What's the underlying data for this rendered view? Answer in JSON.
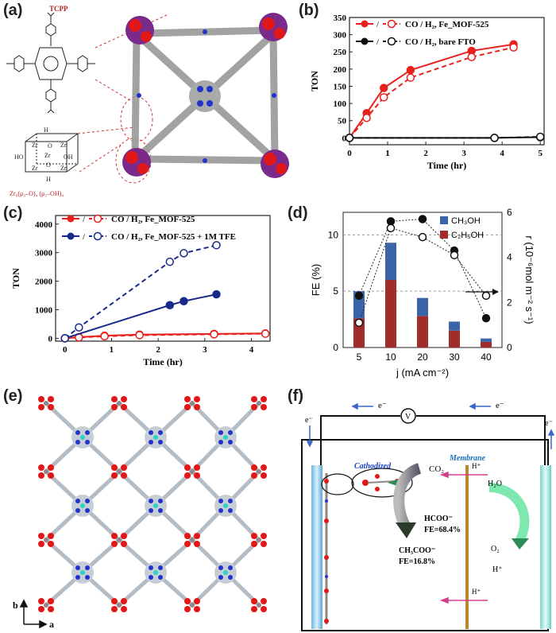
{
  "labels": {
    "a": "(a)",
    "b": "(b)",
    "c": "(c)",
    "d": "(d)",
    "e": "(e)",
    "f": "(f)"
  },
  "panel_a": {
    "tcpp": "TCPP",
    "formula": "Zr₆(μ₃–O)₄ (μ₃–OH)₄",
    "cluster_atoms": [
      "Zr",
      "Zr",
      "Zr",
      "Zr",
      "Zr",
      "O",
      "O",
      "OH",
      "HO",
      "H",
      "H"
    ]
  },
  "panel_e": {
    "axis_b": "b",
    "axis_a": "a"
  },
  "panel_f": {
    "electron_label": "e⁻",
    "voltmeter": "V",
    "membrane": "Membrane",
    "cathodized": "Cathodized",
    "co2": "CO₂",
    "hcoo": "HCOO⁻",
    "fe_hcoo": "FE=68.4%",
    "ch3coo": "CH₃COO⁻",
    "fe_ch3coo": "FE=16.8%",
    "h_plus": "H⁺",
    "h2o": "H₂O",
    "o2": "O₂"
  },
  "chart_data": [
    {
      "type": "line",
      "panel": "b",
      "xlabel": "Time (hr)",
      "ylabel": "TON",
      "xlim": [
        0,
        5.1
      ],
      "ylim": [
        -20,
        350
      ],
      "xticks": [
        "0",
        "1",
        "2",
        "3",
        "4",
        "5"
      ],
      "yticks": [
        "0",
        "50",
        "100",
        "150",
        "200",
        "250",
        "300",
        "350"
      ],
      "legend_position": "top-right",
      "series": [
        {
          "name": "CO / H₂, Fe_MOF-525",
          "color": "#e8211d",
          "style": "solid",
          "marker": "filled",
          "x": [
            0,
            0.45,
            0.9,
            1.6,
            3.2,
            4.3
          ],
          "y": [
            0,
            72,
            145,
            197,
            253,
            272
          ]
        },
        {
          "name": "CO / H₂, Fe_MOF-525",
          "color": "#e8211d",
          "style": "dashed",
          "marker": "open",
          "x": [
            0,
            0.45,
            0.9,
            1.6,
            3.2,
            4.3
          ],
          "y": [
            0,
            58,
            118,
            175,
            235,
            263
          ]
        },
        {
          "name": "CO / H₂, bare FTO",
          "color": "#111111",
          "style": "solid",
          "marker": "filled",
          "x": [
            0,
            3.8,
            5.0
          ],
          "y": [
            0,
            0,
            2
          ]
        },
        {
          "name": "CO / H₂, bare FTO",
          "color": "#111111",
          "style": "dashed",
          "marker": "open",
          "x": [
            0,
            3.8,
            5.0
          ],
          "y": [
            0,
            0,
            3
          ]
        }
      ],
      "legend_entries": [
        "CO / H₂, Fe_MOF-525",
        "CO / H₂, bare FTO"
      ]
    },
    {
      "type": "line",
      "panel": "c",
      "xlabel": "Time (hr)",
      "ylabel": "TON",
      "xlim": [
        -0.2,
        4.4
      ],
      "ylim": [
        -100,
        4300
      ],
      "xticks": [
        "0",
        "1",
        "2",
        "3",
        "4"
      ],
      "yticks": [
        "0",
        "1000",
        "2000",
        "3000",
        "4000"
      ],
      "legend_position": "top-left",
      "series": [
        {
          "name": "CO / H₂, Fe_MOF-525",
          "color": "#e8211d",
          "style": "solid",
          "marker": "filled",
          "x": [
            0,
            0.3,
            0.85,
            1.6,
            3.2,
            4.3
          ],
          "y": [
            0,
            40,
            90,
            130,
            155,
            170
          ]
        },
        {
          "name": "CO / H₂, Fe_MOF-525",
          "color": "#e8211d",
          "style": "dashed",
          "marker": "open",
          "x": [
            0,
            0.3,
            0.85,
            1.6,
            3.2,
            4.3
          ],
          "y": [
            0,
            30,
            70,
            110,
            140,
            160
          ]
        },
        {
          "name": "CO / H₂, Fe_MOF-525 + 1M TFE",
          "color": "#1a2a8a",
          "style": "solid",
          "marker": "filled",
          "x": [
            0,
            2.25,
            2.55,
            3.25
          ],
          "y": [
            0,
            1160,
            1300,
            1540
          ]
        },
        {
          "name": "CO / H₂, Fe_MOF-525 + 1M TFE",
          "color": "#1a2a8a",
          "style": "dashed",
          "marker": "open",
          "x": [
            0,
            0.3,
            2.25,
            2.55,
            3.25
          ],
          "y": [
            0,
            380,
            2680,
            2980,
            3260
          ]
        }
      ],
      "legend_entries": [
        "CO / H₂, Fe_MOF-525",
        "CO / H₂, Fe_MOF-525 + 1M TFE"
      ]
    },
    {
      "type": "bar",
      "panel": "d",
      "xlabel": "j (mA cm⁻²)",
      "ylabel": "FE (%)",
      "ylabel_right": "r (10⁻⁶mol m⁻² s⁻¹)",
      "categories": [
        "5",
        "10",
        "20",
        "30",
        "40"
      ],
      "ylim": [
        0,
        12
      ],
      "ylim_right": [
        0,
        6
      ],
      "yticks": [
        "0",
        "5",
        "10"
      ],
      "yticks_right": [
        "0",
        "2",
        "4",
        "6"
      ],
      "legend_position": "top-right",
      "series": [
        {
          "name": "CH₃OH",
          "color": "#3a66a8",
          "values": [
            2.4,
            3.3,
            1.6,
            0.8,
            0.3
          ]
        },
        {
          "name": "C₂H₅OH",
          "color": "#a22b2b",
          "values": [
            2.6,
            6.0,
            2.8,
            1.5,
            0.5
          ]
        }
      ],
      "rate_series": [
        {
          "marker": "filled",
          "values": [
            2.3,
            5.6,
            5.7,
            4.3,
            1.3
          ]
        },
        {
          "marker": "open",
          "values": [
            1.1,
            5.3,
            4.9,
            4.1,
            2.3
          ]
        }
      ]
    }
  ]
}
